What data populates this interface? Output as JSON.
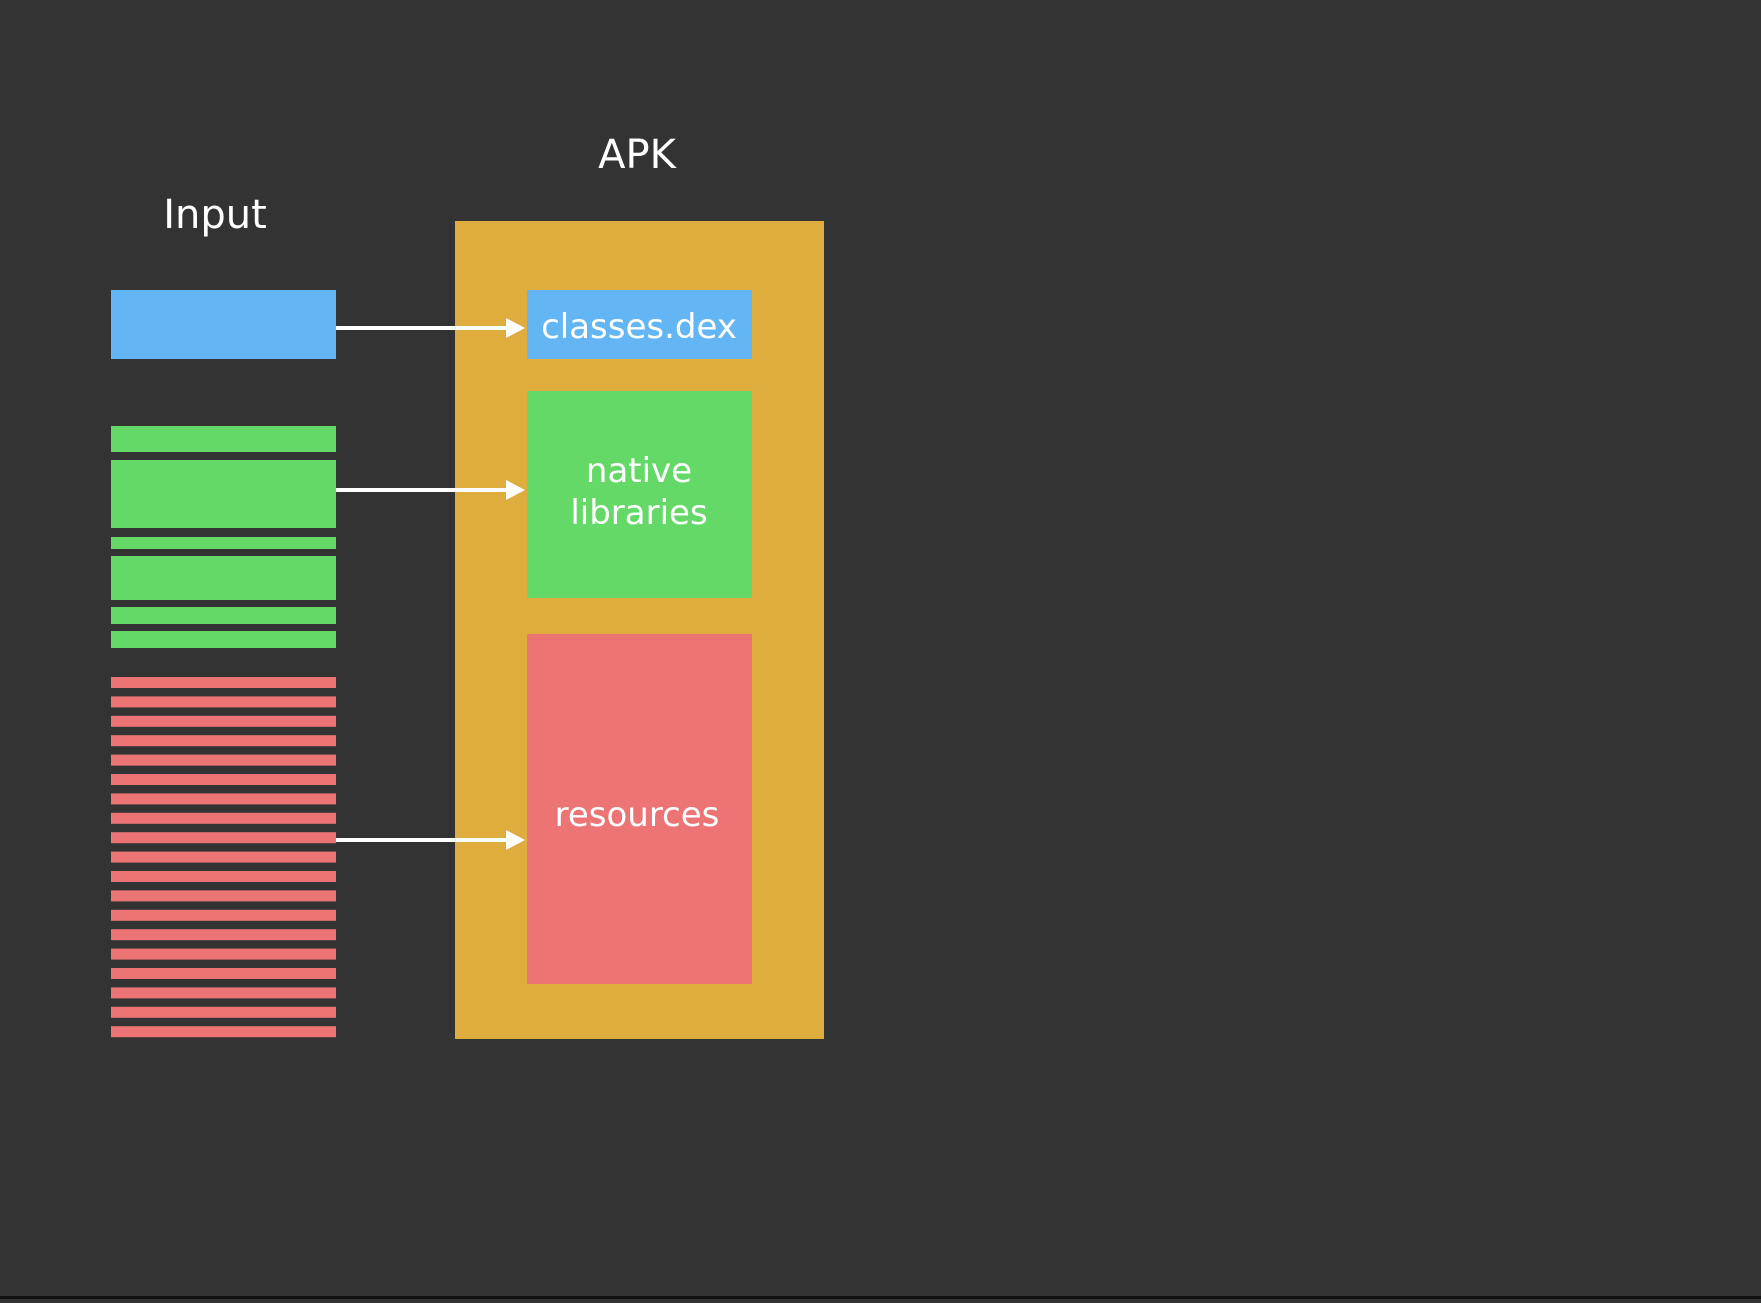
{
  "labels": {
    "input": "Input",
    "apk": "APK"
  },
  "apk_contents": {
    "classes": "classes.dex",
    "native_line1": "native",
    "native_line2": "libraries",
    "resources": "resources"
  },
  "colors": {
    "background": "#333333",
    "apk_container": "#DFAC3E",
    "classes": "#64B5F3",
    "native": "#64D967",
    "resources": "#ED7475",
    "text": "#FFFFFF",
    "arrow": "#FFFFFF"
  }
}
